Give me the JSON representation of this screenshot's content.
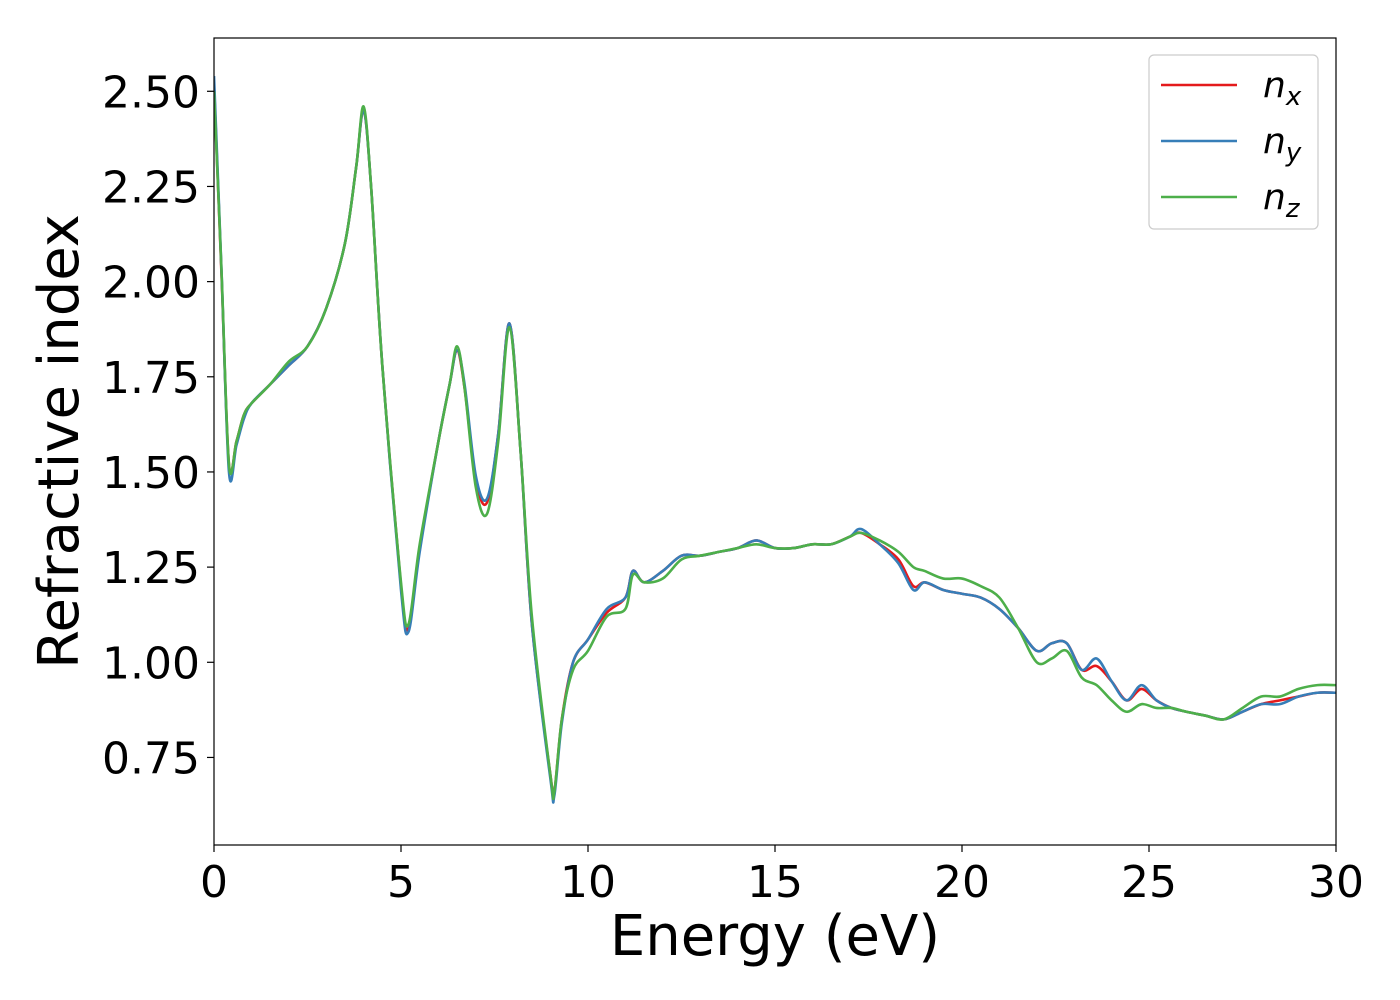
{
  "chart_data": {
    "type": "line",
    "title": "",
    "xlabel": "Energy (eV)",
    "ylabel": "Refractive index",
    "xlim": [
      0,
      30
    ],
    "ylim": [
      0.52,
      2.64
    ],
    "xticks": [
      0,
      5,
      10,
      15,
      20,
      25,
      30
    ],
    "xtick_labels": [
      "0",
      "5",
      "10",
      "15",
      "20",
      "25",
      "30"
    ],
    "yticks": [
      0.75,
      1.0,
      1.25,
      1.5,
      1.75,
      2.0,
      2.25,
      2.5
    ],
    "ytick_labels": [
      "0.75",
      "1.00",
      "1.25",
      "1.50",
      "1.75",
      "2.00",
      "2.25",
      "2.50"
    ],
    "grid": false,
    "legend_position": "top-right",
    "series": [
      {
        "name": "n_x",
        "legend": {
          "base": "n",
          "sub": "x"
        },
        "color": "#e41a1c",
        "x": [
          0,
          0.2,
          0.4,
          0.6,
          0.8,
          1.0,
          1.5,
          2.0,
          2.5,
          3.0,
          3.5,
          3.8,
          4.0,
          4.2,
          4.5,
          5.0,
          5.2,
          5.5,
          6.0,
          6.3,
          6.5,
          6.7,
          7.0,
          7.3,
          7.6,
          7.9,
          8.2,
          8.5,
          9.0,
          9.1,
          9.3,
          9.6,
          10.0,
          10.5,
          11.0,
          11.2,
          11.5,
          12.0,
          12.5,
          13.0,
          13.5,
          14.0,
          14.5,
          15.0,
          15.5,
          16.0,
          16.5,
          17.0,
          17.3,
          17.8,
          18.3,
          18.7,
          19.0,
          19.5,
          20.0,
          20.5,
          21.0,
          21.5,
          22.0,
          22.4,
          22.8,
          23.2,
          23.6,
          24.0,
          24.4,
          24.8,
          25.2,
          25.6,
          26.0,
          26.5,
          27.0,
          27.5,
          28.0,
          28.5,
          29.0,
          29.5,
          30.0
        ],
        "y": [
          2.52,
          2.02,
          1.52,
          1.58,
          1.65,
          1.68,
          1.73,
          1.78,
          1.83,
          1.93,
          2.1,
          2.3,
          2.45,
          2.25,
          1.78,
          1.2,
          1.09,
          1.3,
          1.58,
          1.73,
          1.82,
          1.72,
          1.48,
          1.42,
          1.6,
          1.89,
          1.55,
          1.1,
          0.7,
          0.66,
          0.85,
          1.0,
          1.06,
          1.13,
          1.17,
          1.24,
          1.21,
          1.24,
          1.28,
          1.28,
          1.29,
          1.3,
          1.32,
          1.3,
          1.3,
          1.31,
          1.31,
          1.33,
          1.34,
          1.31,
          1.27,
          1.2,
          1.21,
          1.19,
          1.18,
          1.17,
          1.14,
          1.09,
          1.03,
          1.05,
          1.05,
          0.98,
          0.99,
          0.95,
          0.9,
          0.93,
          0.9,
          0.88,
          0.87,
          0.86,
          0.85,
          0.87,
          0.89,
          0.9,
          0.91,
          0.92,
          0.92
        ]
      },
      {
        "name": "n_y",
        "legend": {
          "base": "n",
          "sub": "y"
        },
        "color": "#377eb8",
        "x": [
          0,
          0.2,
          0.4,
          0.6,
          0.8,
          1.0,
          1.5,
          2.0,
          2.5,
          3.0,
          3.5,
          3.8,
          4.0,
          4.2,
          4.5,
          5.0,
          5.2,
          5.5,
          6.0,
          6.3,
          6.5,
          6.7,
          7.0,
          7.3,
          7.6,
          7.9,
          8.2,
          8.5,
          9.0,
          9.1,
          9.3,
          9.6,
          10.0,
          10.5,
          11.0,
          11.2,
          11.5,
          12.0,
          12.5,
          13.0,
          13.5,
          14.0,
          14.5,
          15.0,
          15.5,
          16.0,
          16.5,
          17.0,
          17.3,
          17.8,
          18.3,
          18.7,
          19.0,
          19.5,
          20.0,
          20.5,
          21.0,
          21.5,
          22.0,
          22.4,
          22.8,
          23.2,
          23.6,
          24.0,
          24.4,
          24.8,
          25.2,
          25.6,
          26.0,
          26.5,
          27.0,
          27.5,
          28.0,
          28.5,
          29.0,
          29.5,
          30.0
        ],
        "y": [
          2.54,
          2.03,
          1.5,
          1.57,
          1.64,
          1.68,
          1.73,
          1.78,
          1.83,
          1.93,
          2.1,
          2.3,
          2.45,
          2.25,
          1.78,
          1.19,
          1.08,
          1.29,
          1.58,
          1.73,
          1.82,
          1.73,
          1.49,
          1.43,
          1.6,
          1.89,
          1.55,
          1.1,
          0.69,
          0.65,
          0.84,
          1.0,
          1.06,
          1.14,
          1.17,
          1.24,
          1.21,
          1.24,
          1.28,
          1.28,
          1.29,
          1.3,
          1.32,
          1.3,
          1.3,
          1.31,
          1.31,
          1.33,
          1.35,
          1.31,
          1.26,
          1.19,
          1.21,
          1.19,
          1.18,
          1.17,
          1.14,
          1.09,
          1.03,
          1.05,
          1.05,
          0.98,
          1.01,
          0.95,
          0.9,
          0.94,
          0.9,
          0.88,
          0.87,
          0.86,
          0.85,
          0.87,
          0.89,
          0.89,
          0.91,
          0.92,
          0.92
        ]
      },
      {
        "name": "n_z",
        "legend": {
          "base": "n",
          "sub": "z"
        },
        "color": "#4daf4a",
        "x": [
          0,
          0.2,
          0.4,
          0.6,
          0.8,
          1.0,
          1.5,
          2.0,
          2.5,
          3.0,
          3.5,
          3.8,
          4.0,
          4.2,
          4.5,
          5.0,
          5.2,
          5.5,
          6.0,
          6.3,
          6.5,
          6.7,
          7.0,
          7.3,
          7.6,
          7.9,
          8.2,
          8.5,
          9.0,
          9.1,
          9.3,
          9.6,
          10.0,
          10.5,
          11.0,
          11.2,
          11.5,
          12.0,
          12.5,
          13.0,
          13.5,
          14.0,
          14.5,
          15.0,
          15.5,
          16.0,
          16.5,
          17.0,
          17.3,
          17.8,
          18.3,
          18.7,
          19.0,
          19.5,
          20.0,
          20.5,
          21.0,
          21.5,
          22.0,
          22.4,
          22.8,
          23.2,
          23.6,
          24.0,
          24.4,
          24.8,
          25.2,
          25.6,
          26.0,
          26.5,
          27.0,
          27.5,
          28.0,
          28.5,
          29.0,
          29.5,
          30.0
        ],
        "y": [
          2.5,
          2.03,
          1.52,
          1.58,
          1.65,
          1.68,
          1.73,
          1.79,
          1.83,
          1.93,
          2.1,
          2.3,
          2.46,
          2.25,
          1.78,
          1.21,
          1.1,
          1.31,
          1.58,
          1.73,
          1.83,
          1.72,
          1.46,
          1.39,
          1.58,
          1.88,
          1.55,
          1.12,
          0.7,
          0.66,
          0.85,
          0.98,
          1.03,
          1.12,
          1.14,
          1.23,
          1.21,
          1.22,
          1.27,
          1.28,
          1.29,
          1.3,
          1.31,
          1.3,
          1.3,
          1.31,
          1.31,
          1.33,
          1.34,
          1.32,
          1.29,
          1.25,
          1.24,
          1.22,
          1.22,
          1.2,
          1.17,
          1.09,
          1.0,
          1.01,
          1.03,
          0.96,
          0.94,
          0.9,
          0.87,
          0.89,
          0.88,
          0.88,
          0.87,
          0.86,
          0.85,
          0.88,
          0.91,
          0.91,
          0.93,
          0.94,
          0.94
        ]
      }
    ]
  }
}
